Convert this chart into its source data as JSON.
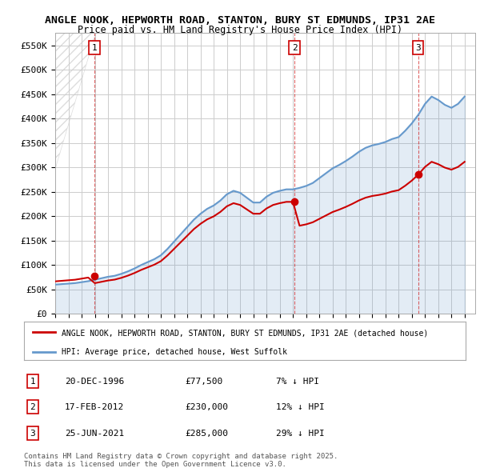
{
  "title_line1": "ANGLE NOOK, HEPWORTH ROAD, STANTON, BURY ST EDMUNDS, IP31 2AE",
  "title_line2": "Price paid vs. HM Land Registry's House Price Index (HPI)",
  "xlim_start": 1994.0,
  "xlim_end": 2025.8,
  "ylim_min": 0,
  "ylim_max": 575000,
  "yticks": [
    0,
    50000,
    100000,
    150000,
    200000,
    250000,
    300000,
    350000,
    400000,
    450000,
    500000,
    550000
  ],
  "ytick_labels": [
    "£0",
    "£50K",
    "£100K",
    "£150K",
    "£200K",
    "£250K",
    "£300K",
    "£350K",
    "£400K",
    "£450K",
    "£500K",
    "£550K"
  ],
  "xticks": [
    1994,
    1995,
    1996,
    1997,
    1998,
    1999,
    2000,
    2001,
    2002,
    2003,
    2004,
    2005,
    2006,
    2007,
    2008,
    2009,
    2010,
    2011,
    2012,
    2013,
    2014,
    2015,
    2016,
    2017,
    2018,
    2019,
    2020,
    2021,
    2022,
    2023,
    2024,
    2025
  ],
  "sale_dates": [
    1996.97,
    2012.12,
    2021.48
  ],
  "sale_prices": [
    77500,
    230000,
    285000
  ],
  "sale_labels": [
    "1",
    "2",
    "3"
  ],
  "legend_red_label": "ANGLE NOOK, HEPWORTH ROAD, STANTON, BURY ST EDMUNDS, IP31 2AE (detached house)",
  "legend_blue_label": "HPI: Average price, detached house, West Suffolk",
  "table_rows": [
    {
      "num": "1",
      "date": "20-DEC-1996",
      "price": "£77,500",
      "hpi": "7% ↓ HPI"
    },
    {
      "num": "2",
      "date": "17-FEB-2012",
      "price": "£230,000",
      "hpi": "12% ↓ HPI"
    },
    {
      "num": "3",
      "date": "25-JUN-2021",
      "price": "£285,000",
      "hpi": "29% ↓ HPI"
    }
  ],
  "footer": "Contains HM Land Registry data © Crown copyright and database right 2025.\nThis data is licensed under the Open Government Licence v3.0.",
  "red_color": "#cc0000",
  "blue_color": "#6699cc",
  "grid_color": "#cccccc",
  "bg_color": "#ffffff"
}
